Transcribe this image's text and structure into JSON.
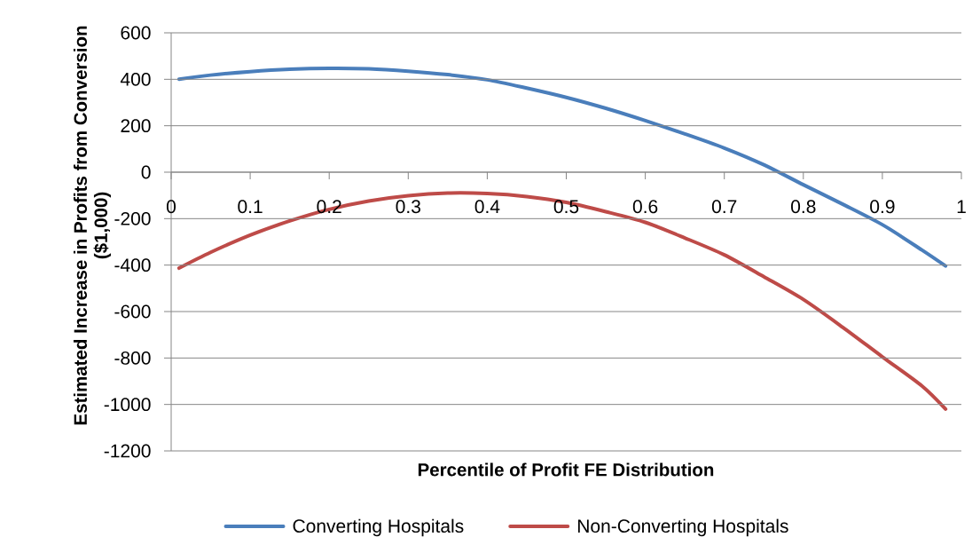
{
  "chart_data": {
    "type": "line",
    "xlabel": "Percentile of Profit FE Distribution",
    "ylabel": "Estimated Increase in Profits from Conversion ($1,000)",
    "x": [
      0.01,
      0.05,
      0.1,
      0.15,
      0.2,
      0.25,
      0.3,
      0.35,
      0.4,
      0.45,
      0.5,
      0.55,
      0.6,
      0.65,
      0.7,
      0.75,
      0.8,
      0.85,
      0.9,
      0.95,
      0.98
    ],
    "series": [
      {
        "name": "Converting Hospitals",
        "color": "#4a7ebb",
        "values": [
          400,
          418,
          433,
          443,
          447,
          445,
          435,
          420,
          398,
          362,
          322,
          275,
          222,
          165,
          104,
          32,
          -54,
          -138,
          -226,
          -335,
          -404
        ]
      },
      {
        "name": "Non-Converting Hospitals",
        "color": "#be4b48",
        "values": [
          -413,
          -345,
          -271,
          -210,
          -160,
          -124,
          -101,
          -90,
          -92,
          -105,
          -130,
          -170,
          -216,
          -283,
          -356,
          -450,
          -548,
          -668,
          -795,
          -920,
          -1020
        ]
      }
    ],
    "xlim": [
      0,
      1
    ],
    "xticks": [
      0,
      0.1,
      0.2,
      0.3,
      0.4,
      0.5,
      0.6,
      0.7,
      0.8,
      0.9,
      1
    ],
    "ylim": [
      -1200,
      600
    ],
    "yticks": [
      -1200,
      -1000,
      -800,
      -600,
      -400,
      -200,
      0,
      200,
      400,
      600
    ],
    "grid": "y",
    "legend": "bottom",
    "marker": "none",
    "line_style": "solid"
  }
}
